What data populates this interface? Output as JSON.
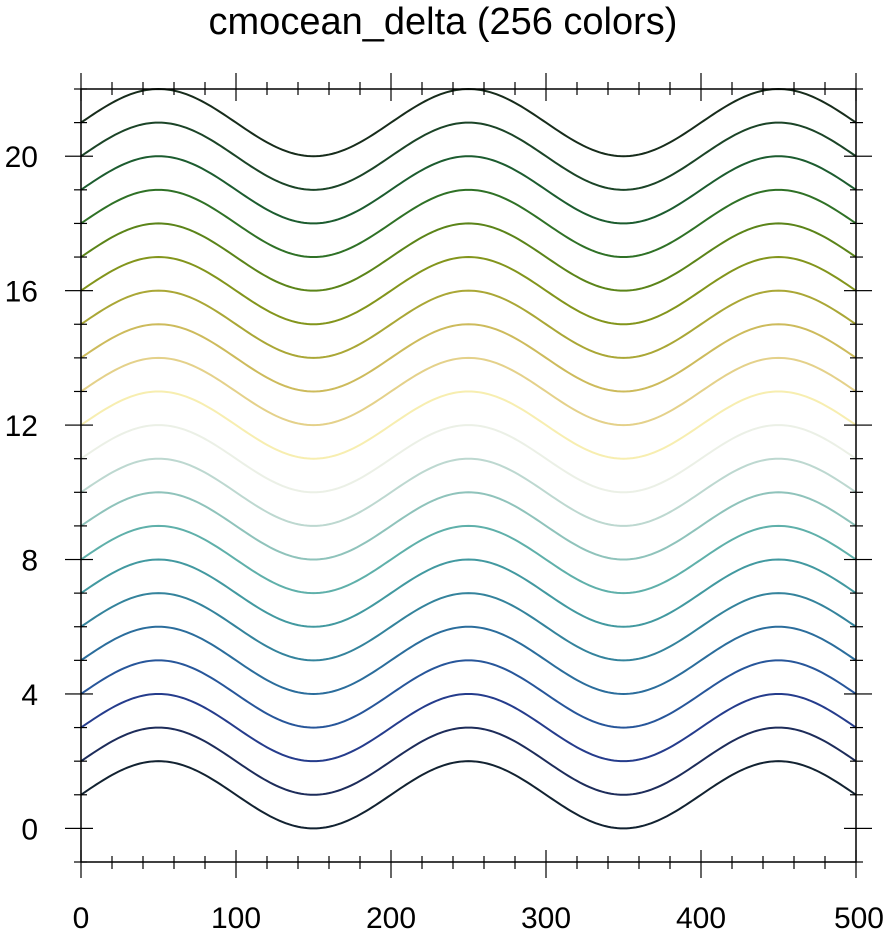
{
  "chart_data": {
    "type": "line",
    "title": "cmocean_delta (256 colors)",
    "xlabel": "",
    "ylabel": "",
    "xlim": [
      0,
      500
    ],
    "ylim": [
      -1,
      22
    ],
    "x_ticks": [
      "0",
      "100",
      "200",
      "300",
      "400",
      "500"
    ],
    "y_ticks": [
      "0",
      "4",
      "8",
      "12",
      "16",
      "20"
    ],
    "grid": false,
    "curve": {
      "function": "offset + sin(2*pi*(x - 0)/200)",
      "amplitude": 1,
      "period": 200,
      "peak_x": [
        50,
        250,
        450
      ],
      "trough_x": [
        150,
        350
      ]
    },
    "series": [
      {
        "offset": 1,
        "color": "#122231"
      },
      {
        "offset": 2,
        "color": "#1d2c5a"
      },
      {
        "offset": 3,
        "color": "#253c8c"
      },
      {
        "offset": 4,
        "color": "#27569a"
      },
      {
        "offset": 5,
        "color": "#2b6d9c"
      },
      {
        "offset": 6,
        "color": "#34839c"
      },
      {
        "offset": 7,
        "color": "#4299a0"
      },
      {
        "offset": 8,
        "color": "#5fb0aa"
      },
      {
        "offset": 9,
        "color": "#8fc3bb"
      },
      {
        "offset": 10,
        "color": "#bdd8d0"
      },
      {
        "offset": 11,
        "color": "#ebf0e6"
      },
      {
        "offset": 12,
        "color": "#f7eeb0"
      },
      {
        "offset": 13,
        "color": "#e4d18a"
      },
      {
        "offset": 14,
        "color": "#cdbb5c"
      },
      {
        "offset": 15,
        "color": "#aaa736"
      },
      {
        "offset": 16,
        "color": "#83951c"
      },
      {
        "offset": 17,
        "color": "#5b8419"
      },
      {
        "offset": 18,
        "color": "#2f7126"
      },
      {
        "offset": 19,
        "color": "#1c5c2f"
      },
      {
        "offset": 20,
        "color": "#1b4427"
      },
      {
        "offset": 21,
        "color": "#172c1b"
      }
    ]
  }
}
